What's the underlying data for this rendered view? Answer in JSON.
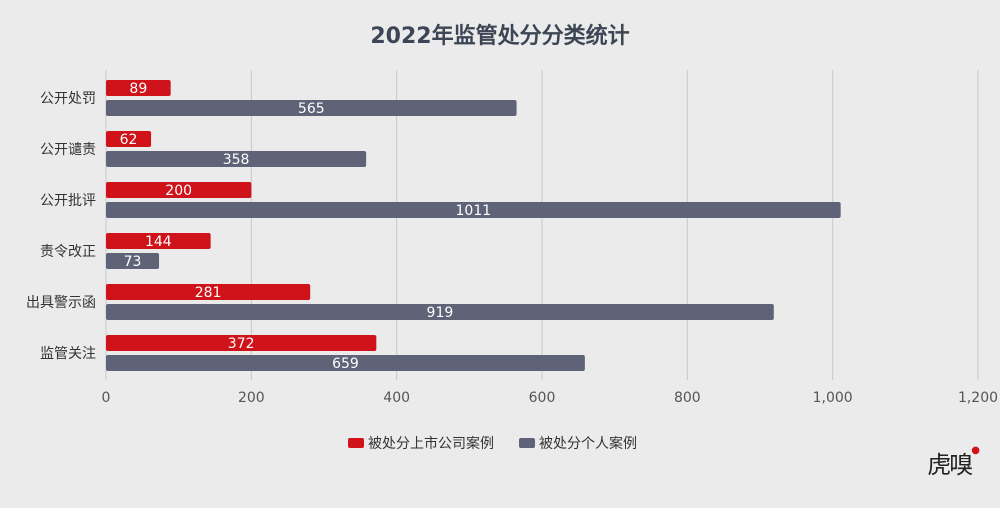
{
  "chart_data": {
    "type": "bar",
    "orientation": "horizontal",
    "title": "2022年监管处分分类统计",
    "categories": [
      "公开处罚",
      "公开谴责",
      "公开批评",
      "责令改正",
      "出具警示函",
      "监管关注"
    ],
    "series": [
      {
        "name": "被处分上市公司案例",
        "color": "#d0121b",
        "values": [
          89,
          62,
          200,
          144,
          281,
          372
        ]
      },
      {
        "name": "被处分个人案例",
        "color": "#5f6377",
        "values": [
          565,
          358,
          1011,
          73,
          919,
          659
        ]
      }
    ],
    "xlim": [
      0,
      1200
    ],
    "xticks": [
      0,
      200,
      400,
      600,
      800,
      1000,
      1200
    ],
    "xtick_labels": [
      "0",
      "200",
      "400",
      "600",
      "800",
      "1,000",
      "1,200"
    ],
    "grid": true,
    "legend_position": "bottom-center"
  },
  "brand": {
    "logo_text": "虎嗅"
  }
}
